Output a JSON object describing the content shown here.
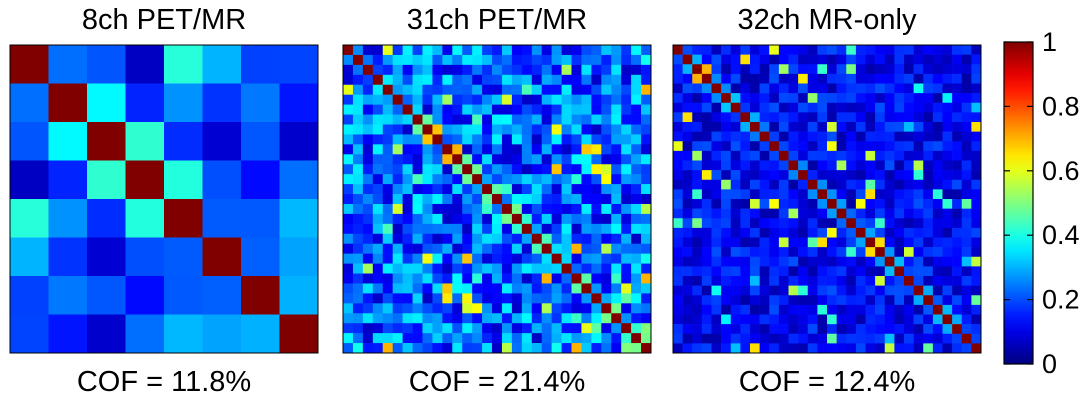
{
  "chart_data": [
    {
      "type": "heatmap",
      "title": "8ch PET/MR",
      "caption": "COF = 11.8%",
      "n": 8,
      "offdiag_level": 0.18,
      "seed": 7,
      "colormap": "jet",
      "clim": [
        0,
        1
      ]
    },
    {
      "type": "heatmap",
      "title": "31ch PET/MR",
      "caption": "COF = 21.4%",
      "n": 31,
      "offdiag_level": 0.22,
      "seed": 31,
      "colormap": "jet",
      "clim": [
        0,
        1
      ]
    },
    {
      "type": "heatmap",
      "title": "32ch MR-only",
      "caption": "COF = 12.4%",
      "n": 32,
      "offdiag_level": 0.12,
      "seed": 32,
      "colormap": "jet",
      "clim": [
        0,
        1
      ]
    }
  ],
  "colorbar": {
    "ticks": [
      "0",
      "0.2",
      "0.4",
      "0.6",
      "0.8",
      "1"
    ],
    "tick_values": [
      0,
      0.2,
      0.4,
      0.6,
      0.8,
      1
    ]
  }
}
